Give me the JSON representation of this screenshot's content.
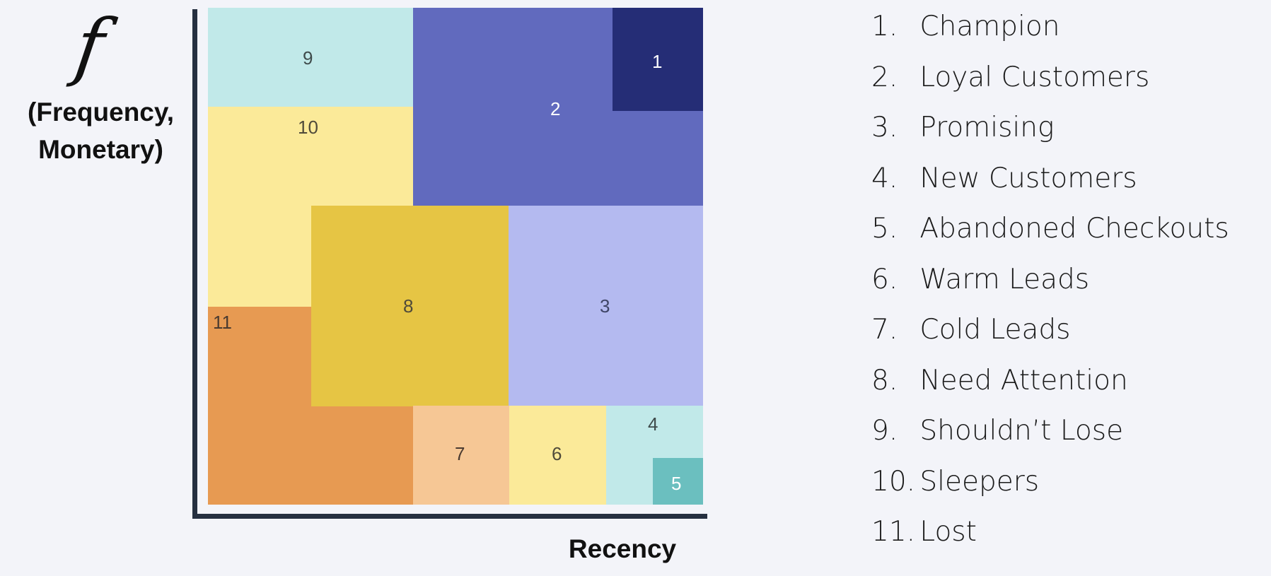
{
  "y_axis": {
    "symbol": "f",
    "label_line1": "(Frequency,",
    "label_line2": "Monetary)"
  },
  "x_axis": {
    "label": "Recency"
  },
  "segments": [
    {
      "id": "9",
      "color": "#c1e9e9",
      "text_color": "#3f4b4b"
    },
    {
      "id": "2",
      "color": "#616abe",
      "text_color": "#ffffff"
    },
    {
      "id": "1",
      "color": "#252d76",
      "text_color": "#ffffff"
    },
    {
      "id": "10",
      "color": "#fbea99",
      "text_color": "#4f4a3a"
    },
    {
      "id": "8",
      "color": "#e6c544",
      "text_color": "#4f4a3a"
    },
    {
      "id": "3",
      "color": "#b4baf0",
      "text_color": "#3f4566"
    },
    {
      "id": "11",
      "color": "#e79a52",
      "text_color": "#4a3a30"
    },
    {
      "id": "7",
      "color": "#f6c795",
      "text_color": "#4a3a30"
    },
    {
      "id": "6",
      "color": "#fbea99",
      "text_color": "#4f4a3a"
    },
    {
      "id": "4",
      "color": "#c1e9e9",
      "text_color": "#3f4b4b"
    },
    {
      "id": "5",
      "color": "#6bbfbf",
      "text_color": "#ffffff"
    }
  ],
  "legend": [
    {
      "num": "1.",
      "label": "Champion"
    },
    {
      "num": "2.",
      "label": "Loyal Customers"
    },
    {
      "num": "3.",
      "label": "Promising"
    },
    {
      "num": "4.",
      "label": "New Customers"
    },
    {
      "num": "5.",
      "label": "Abandoned Checkouts"
    },
    {
      "num": "6.",
      "label": "Warm Leads"
    },
    {
      "num": "7.",
      "label": "Cold Leads"
    },
    {
      "num": "8.",
      "label": "Need Attention"
    },
    {
      "num": "9.",
      "label": "Shouldn’t Lose"
    },
    {
      "num": "10.",
      "label": "Sleepers"
    },
    {
      "num": "11.",
      "label": "Lost"
    }
  ]
}
